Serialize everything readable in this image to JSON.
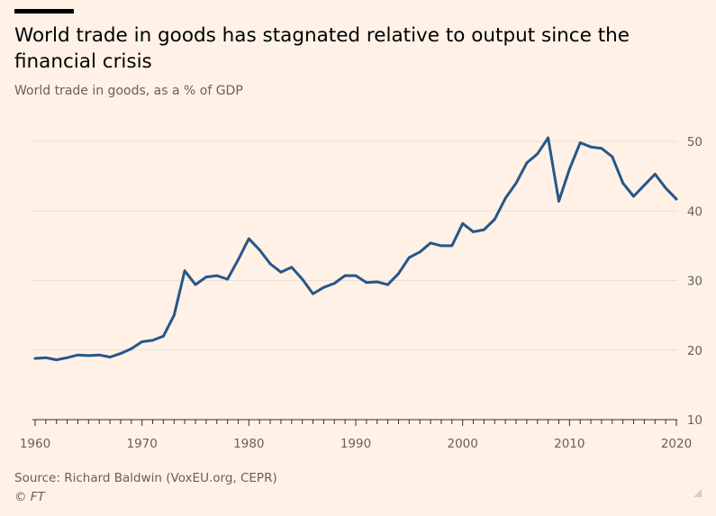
{
  "header": {
    "title": "World trade in goods has stagnated relative to output since the financial crisis",
    "subtitle": "World trade in goods, as a % of GDP"
  },
  "footer": {
    "source": "Source: Richard Baldwin (VoxEU.org, CEPR)",
    "copyright": "© FT"
  },
  "colors": {
    "background": "#FFF1E5",
    "line": "#26578A",
    "grid": "#EADFD4",
    "axis": "#33302E",
    "label": "#66605C"
  },
  "chart_data": {
    "type": "line",
    "title": "World trade in goods has stagnated relative to output since the financial crisis",
    "subtitle": "World trade in goods, as a % of GDP",
    "xlabel": "",
    "ylabel": "",
    "xlim": [
      1960,
      2020
    ],
    "ylim": [
      10,
      50
    ],
    "x_ticks": [
      1960,
      1970,
      1980,
      1990,
      2000,
      2010,
      2020
    ],
    "y_ticks": [
      10,
      20,
      30,
      40,
      50
    ],
    "y_axis_side": "right",
    "grid": "horizontal",
    "series": [
      {
        "name": "",
        "x": [
          1960,
          1961,
          1962,
          1963,
          1964,
          1965,
          1966,
          1967,
          1968,
          1969,
          1970,
          1971,
          1972,
          1973,
          1974,
          1975,
          1976,
          1977,
          1978,
          1979,
          1980,
          1981,
          1982,
          1983,
          1984,
          1985,
          1986,
          1987,
          1988,
          1989,
          1990,
          1991,
          1992,
          1993,
          1994,
          1995,
          1996,
          1997,
          1998,
          1999,
          2000,
          2001,
          2002,
          2003,
          2004,
          2005,
          2006,
          2007,
          2008,
          2009,
          2010,
          2011,
          2012,
          2013,
          2014,
          2015,
          2016,
          2017,
          2018,
          2019,
          2020
        ],
        "y": [
          18.8,
          18.9,
          18.6,
          18.9,
          19.3,
          19.2,
          19.3,
          19.0,
          19.5,
          20.2,
          21.2,
          21.4,
          22.0,
          25.0,
          31.4,
          29.4,
          30.5,
          30.7,
          30.2,
          33.0,
          36.0,
          34.4,
          32.4,
          31.2,
          31.9,
          30.2,
          28.1,
          29.0,
          29.6,
          30.7,
          30.7,
          29.7,
          29.8,
          29.4,
          31.0,
          33.3,
          34.1,
          35.4,
          35.0,
          35.0,
          38.2,
          37.0,
          37.3,
          38.8,
          41.8,
          44.0,
          46.9,
          48.2,
          50.5,
          41.4,
          46.0,
          49.8,
          49.2,
          49.0,
          47.8,
          44.0,
          42.1,
          43.7,
          45.3,
          43.3,
          41.7
        ]
      }
    ]
  }
}
